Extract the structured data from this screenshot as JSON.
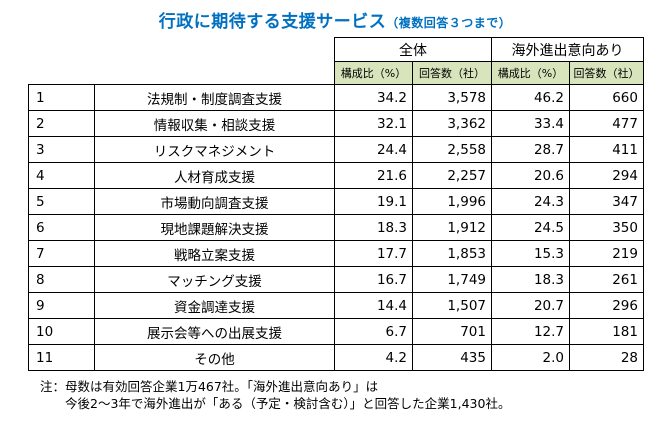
{
  "title": "行政に期待する支援サービス",
  "subtitle": "（複数回答３つまで）",
  "groups": [
    "全体",
    "海外進出意向あり"
  ],
  "columns": [
    "構成比（%）",
    "回答数（社）",
    "構成比（%）",
    "回答数（社）"
  ],
  "rows": [
    {
      "no": "1",
      "name": "法規制・制度調査支援",
      "all_pct": "34.2",
      "all_cnt": "3,578",
      "ov_pct": "46.2",
      "ov_cnt": "660"
    },
    {
      "no": "2",
      "name": "情報収集・相談支援",
      "all_pct": "32.1",
      "all_cnt": "3,362",
      "ov_pct": "33.4",
      "ov_cnt": "477"
    },
    {
      "no": "3",
      "name": "リスクマネジメント",
      "all_pct": "24.4",
      "all_cnt": "2,558",
      "ov_pct": "28.7",
      "ov_cnt": "411"
    },
    {
      "no": "4",
      "name": "人材育成支援",
      "all_pct": "21.6",
      "all_cnt": "2,257",
      "ov_pct": "20.6",
      "ov_cnt": "294"
    },
    {
      "no": "5",
      "name": "市場動向調査支援",
      "all_pct": "19.1",
      "all_cnt": "1,996",
      "ov_pct": "24.3",
      "ov_cnt": "347"
    },
    {
      "no": "6",
      "name": "現地課題解決支援",
      "all_pct": "18.3",
      "all_cnt": "1,912",
      "ov_pct": "24.5",
      "ov_cnt": "350"
    },
    {
      "no": "7",
      "name": "戦略立案支援",
      "all_pct": "17.7",
      "all_cnt": "1,853",
      "ov_pct": "15.3",
      "ov_cnt": "219"
    },
    {
      "no": "8",
      "name": "マッチング支援",
      "all_pct": "16.7",
      "all_cnt": "1,749",
      "ov_pct": "18.3",
      "ov_cnt": "261"
    },
    {
      "no": "9",
      "name": "資金調達支援",
      "all_pct": "14.4",
      "all_cnt": "1,507",
      "ov_pct": "20.7",
      "ov_cnt": "296"
    },
    {
      "no": "10",
      "name": "展示会等への出展支援",
      "all_pct": "6.7",
      "all_cnt": "701",
      "ov_pct": "12.7",
      "ov_cnt": "181"
    },
    {
      "no": "11",
      "name": "その他",
      "all_pct": "4.2",
      "all_cnt": "435",
      "ov_pct": "2.0",
      "ov_cnt": "28"
    }
  ],
  "notes": [
    "注：母数は有効回答企業1万467社。「海外進出意向あり」は",
    "　　今後2～3年で海外進出が「ある（予定・検討含む）」と回答した企業1,430社。"
  ]
}
